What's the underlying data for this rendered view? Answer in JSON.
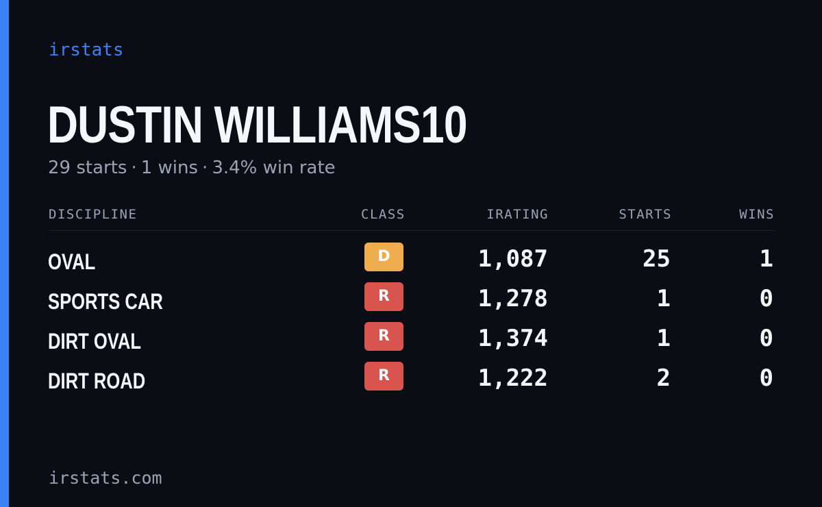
{
  "brand": "irstats",
  "player": {
    "name": "DUSTIN WILLIAMS10"
  },
  "summary": {
    "starts": "29 starts",
    "wins": "1 wins",
    "win_rate": "3.4% win rate",
    "separator": "·"
  },
  "table": {
    "headers": {
      "discipline": "DISCIPLINE",
      "class": "CLASS",
      "irating": "IRATING",
      "starts": "STARTS",
      "wins": "WINS"
    },
    "rows": [
      {
        "discipline": "OVAL",
        "class": "D",
        "class_color": "#f0ad4e",
        "irating": "1,087",
        "starts": "25",
        "wins": "1"
      },
      {
        "discipline": "SPORTS CAR",
        "class": "R",
        "class_color": "#d9534f",
        "irating": "1,278",
        "starts": "1",
        "wins": "0"
      },
      {
        "discipline": "DIRT OVAL",
        "class": "R",
        "class_color": "#d9534f",
        "irating": "1,374",
        "starts": "1",
        "wins": "0"
      },
      {
        "discipline": "DIRT ROAD",
        "class": "R",
        "class_color": "#d9534f",
        "irating": "1,222",
        "starts": "2",
        "wins": "0"
      }
    ]
  },
  "footer": {
    "site": "irstats.com"
  },
  "colors": {
    "background": "#0a0d14",
    "accent": "#3b82f6",
    "muted_text": "#9aa4b6",
    "primary_text": "#f5f7fa"
  }
}
